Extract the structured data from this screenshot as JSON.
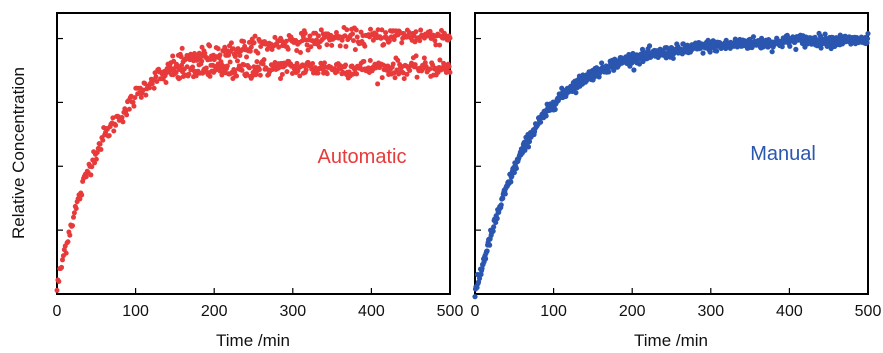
{
  "figure": {
    "ylabel": "Relative Concentration"
  },
  "chart_data": [
    {
      "type": "scatter",
      "label": "Automatic",
      "color": "#e83a3a",
      "xlabel": "Time /min",
      "ylabel": "Relative Concentration",
      "xlim": [
        0,
        500
      ],
      "ylim": [
        0,
        1.12
      ],
      "xticks": [
        0,
        100,
        200,
        300,
        400,
        500
      ],
      "yticks_labeled": false,
      "grid": false,
      "series": [
        {
          "x": [
            0,
            10,
            20,
            30,
            40,
            50,
            60,
            70,
            80,
            90,
            100,
            110,
            120,
            130,
            140,
            150,
            160,
            170,
            180,
            190,
            200,
            220,
            240,
            260,
            280,
            300,
            320,
            340,
            360,
            380,
            400,
            420,
            440,
            460,
            480,
            500
          ],
          "y": [
            0.02,
            0.18,
            0.3,
            0.4,
            0.5,
            0.57,
            0.63,
            0.67,
            0.71,
            0.74,
            0.79,
            0.82,
            0.85,
            0.87,
            0.87,
            0.88,
            0.88,
            0.89,
            0.89,
            0.89,
            0.89,
            0.89,
            0.89,
            0.9,
            0.9,
            0.9,
            0.9,
            0.9,
            0.9,
            0.9,
            0.9,
            0.9,
            0.9,
            0.9,
            0.9,
            0.9
          ]
        },
        {
          "x": [
            140,
            160,
            180,
            200,
            220,
            240,
            260,
            280,
            300,
            320,
            340,
            360,
            380,
            400,
            420,
            440,
            460,
            480,
            500
          ],
          "y": [
            0.9,
            0.93,
            0.95,
            0.96,
            0.97,
            0.98,
            0.99,
            1.0,
            1.01,
            1.01,
            1.02,
            1.02,
            1.02,
            1.02,
            1.03,
            1.03,
            1.03,
            1.03,
            1.03
          ]
        }
      ]
    },
    {
      "type": "scatter",
      "label": "Manual",
      "color": "#2a56b0",
      "xlabel": "Time /min",
      "xlim": [
        0,
        500
      ],
      "ylim": [
        0,
        1.12
      ],
      "xticks": [
        0,
        100,
        200,
        300,
        400,
        500
      ],
      "yticks_labeled": false,
      "grid": false,
      "series": [
        {
          "x": [
            0,
            10,
            20,
            30,
            40,
            50,
            60,
            70,
            80,
            90,
            100,
            110,
            120,
            130,
            140,
            150,
            160,
            170,
            180,
            190,
            200,
            220,
            240,
            260,
            280,
            300,
            320,
            340,
            360,
            380,
            400,
            420,
            440,
            460,
            480,
            500
          ],
          "y": [
            0.0,
            0.12,
            0.23,
            0.33,
            0.42,
            0.5,
            0.57,
            0.63,
            0.68,
            0.72,
            0.76,
            0.79,
            0.82,
            0.84,
            0.86,
            0.88,
            0.89,
            0.91,
            0.92,
            0.93,
            0.94,
            0.95,
            0.96,
            0.97,
            0.98,
            0.99,
            0.99,
            1.0,
            1.0,
            1.0,
            1.01,
            1.01,
            1.01,
            1.01,
            1.01,
            1.01
          ]
        }
      ]
    }
  ]
}
